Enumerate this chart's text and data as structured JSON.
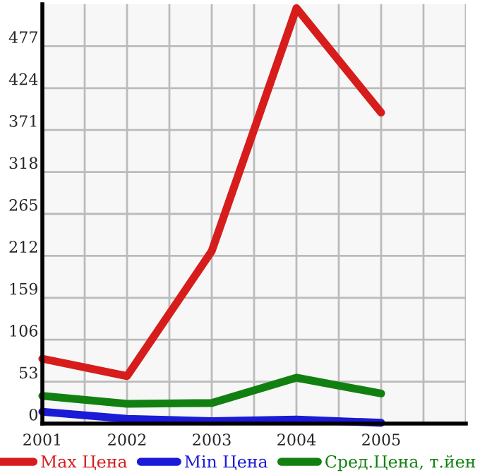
{
  "chart_data": {
    "type": "line",
    "x": [
      2001,
      2002,
      2003,
      2004,
      2005
    ],
    "series": [
      {
        "name": "Max Цена",
        "color": "#d71c1c",
        "values": [
          82,
          60,
          218,
          525,
          393
        ]
      },
      {
        "name": "Min Цена",
        "color": "#1a1ad7",
        "values": [
          15,
          6,
          3,
          5,
          1
        ]
      },
      {
        "name": "Сред.Цена, т.йен",
        "color": "#118011",
        "values": [
          35,
          25,
          26,
          58,
          38
        ]
      }
    ],
    "xlim": [
      2001,
      2006
    ],
    "xticks": [
      2001,
      {
        "value": 2001.5,
        "label": null
      },
      2002,
      {
        "value": 2002.5,
        "label": null
      },
      2003,
      {
        "value": 2003.5,
        "label": null
      },
      2004,
      {
        "value": 2004.5,
        "label": null
      },
      2005,
      {
        "value": 2005.5,
        "label": null
      },
      {
        "value": 2006,
        "label": null
      }
    ],
    "ylim": [
      0,
      530
    ],
    "yticks": [
      0,
      53,
      106,
      159,
      212,
      265,
      318,
      371,
      424,
      477
    ],
    "grid": true,
    "legend": "bottom",
    "marker": "none",
    "line_style": "solid"
  }
}
